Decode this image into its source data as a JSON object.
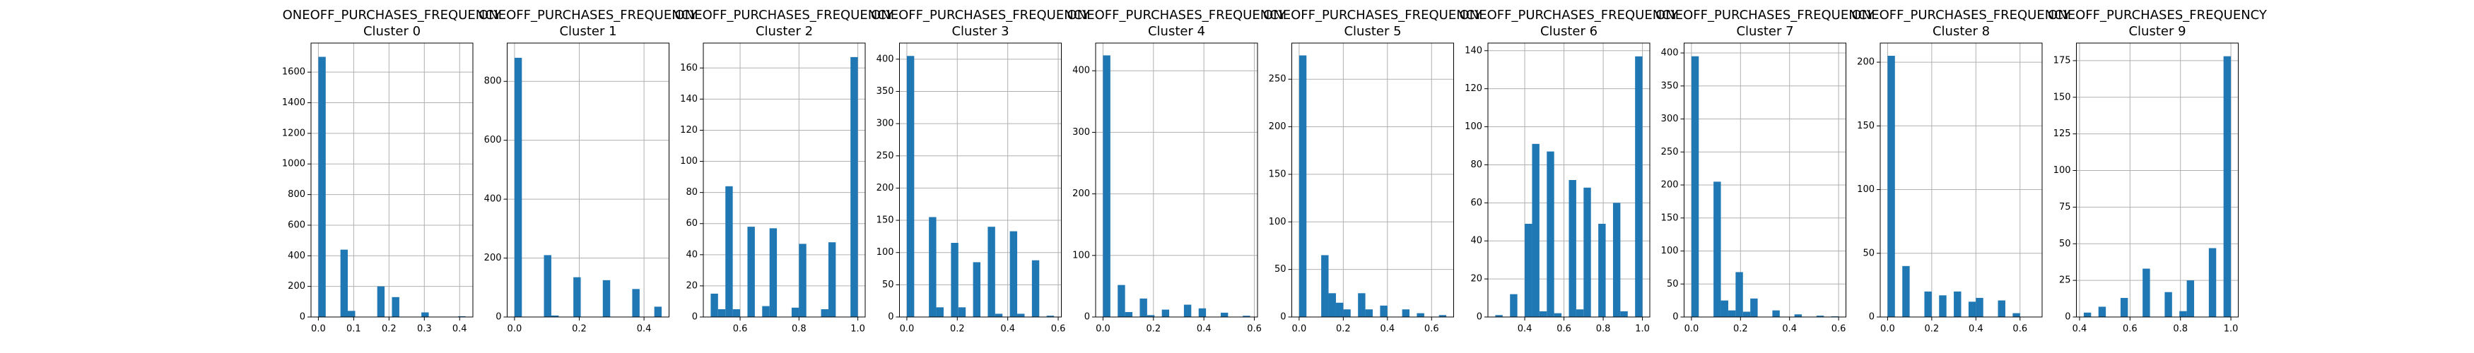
{
  "chart_data": [
    {
      "type": "histogram",
      "title": "ONEOFF_PURCHASES_FREQUENCY",
      "subtitle": "Cluster 0",
      "color": "#1f77b4",
      "grid": true,
      "bins": [
        0,
        0.0208,
        0.0417,
        0.0625,
        0.0833,
        0.1042,
        0.125,
        0.1458,
        0.1667,
        0.1875,
        0.2083,
        0.2292,
        0.25,
        0.2708,
        0.2917,
        0.3125,
        0.3333,
        0.3542,
        0.375,
        0.3958,
        0.4167
      ],
      "counts": [
        1700,
        0,
        0,
        440,
        40,
        0,
        0,
        0,
        200,
        0,
        130,
        0,
        0,
        0,
        30,
        0,
        0,
        0,
        0,
        5
      ],
      "xlim": [
        -0.0208,
        0.4375
      ],
      "xticks": [
        {
          "value": 0,
          "label": "0.0"
        },
        0.1,
        0.2,
        0.3,
        0.4
      ],
      "ylim": [
        0,
        1790
      ],
      "yticks": [
        0,
        200,
        400,
        600,
        800,
        1000,
        1200,
        1400,
        1600
      ]
    },
    {
      "type": "histogram",
      "title": "ONEOFF_PURCHASES_FREQUENCY",
      "subtitle": "Cluster 1",
      "color": "#1f77b4",
      "grid": true,
      "bins": [
        0,
        0.0227,
        0.0455,
        0.0682,
        0.0909,
        0.1136,
        0.1364,
        0.1591,
        0.1818,
        0.2045,
        0.2273,
        0.25,
        0.2727,
        0.2955,
        0.3182,
        0.3409,
        0.3636,
        0.3864,
        0.4091,
        0.4318,
        0.4545
      ],
      "counts": [
        880,
        0,
        0,
        0,
        210,
        5,
        0,
        0,
        135,
        0,
        0,
        0,
        125,
        0,
        0,
        0,
        95,
        0,
        0,
        35
      ],
      "xlim": [
        -0.0227,
        0.4773
      ],
      "xticks": [
        {
          "value": 0,
          "label": "0.0"
        },
        0.2,
        0.4
      ],
      "ylim": [
        0,
        930
      ],
      "yticks": [
        0,
        200,
        400,
        600,
        800
      ]
    },
    {
      "type": "histogram",
      "title": "ONEOFF_PURCHASES_FREQUENCY",
      "subtitle": "Cluster 2",
      "color": "#1f77b4",
      "grid": true,
      "bins": [
        0.5,
        0.525,
        0.55,
        0.575,
        0.6,
        0.625,
        0.65,
        0.675,
        0.7,
        0.725,
        0.75,
        0.775,
        0.8,
        0.825,
        0.85,
        0.875,
        0.9,
        0.925,
        0.95,
        0.975,
        1
      ],
      "counts": [
        15,
        5,
        84,
        5,
        0,
        58,
        0,
        7,
        57,
        0,
        0,
        6,
        47,
        0,
        0,
        5,
        48,
        0,
        0,
        167
      ],
      "xlim": [
        0.475,
        1.025
      ],
      "xticks": [
        0.6,
        0.8,
        {
          "value": 1,
          "label": "1.0"
        }
      ],
      "ylim": [
        0,
        176
      ],
      "yticks": [
        0,
        20,
        40,
        60,
        80,
        100,
        120,
        140,
        160
      ]
    },
    {
      "type": "histogram",
      "title": "ONEOFF_PURCHASES_FREQUENCY",
      "subtitle": "Cluster 3",
      "color": "#1f77b4",
      "grid": true,
      "bins": [
        0,
        0.0292,
        0.0583,
        0.0875,
        0.1167,
        0.1458,
        0.175,
        0.2042,
        0.2333,
        0.2625,
        0.2917,
        0.3208,
        0.35,
        0.3792,
        0.4083,
        0.4375,
        0.4667,
        0.4958,
        0.525,
        0.5542,
        0.5833
      ],
      "counts": [
        405,
        0,
        0,
        155,
        15,
        0,
        115,
        15,
        0,
        85,
        0,
        140,
        5,
        0,
        133,
        5,
        0,
        88,
        0,
        2
      ],
      "xlim": [
        -0.0292,
        0.6125
      ],
      "xticks": [
        {
          "value": 0,
          "label": "0.0"
        },
        0.2,
        0.4,
        0.6
      ],
      "ylim": [
        0,
        425
      ],
      "yticks": [
        0,
        50,
        100,
        150,
        200,
        250,
        300,
        350,
        400
      ]
    },
    {
      "type": "histogram",
      "title": "ONEOFF_PURCHASES_FREQUENCY",
      "subtitle": "Cluster 4",
      "color": "#1f77b4",
      "grid": true,
      "bins": [
        0,
        0.0292,
        0.0583,
        0.0875,
        0.1167,
        0.1458,
        0.175,
        0.2042,
        0.2333,
        0.2625,
        0.2917,
        0.3208,
        0.35,
        0.3792,
        0.4083,
        0.4375,
        0.4667,
        0.4958,
        0.525,
        0.5542,
        0.5833
      ],
      "counts": [
        425,
        0,
        52,
        8,
        0,
        30,
        3,
        0,
        12,
        0,
        0,
        20,
        0,
        14,
        0,
        0,
        7,
        0,
        0,
        2
      ],
      "xlim": [
        -0.0292,
        0.6125
      ],
      "xticks": [
        {
          "value": 0,
          "label": "0.0"
        },
        0.2,
        0.4,
        0.6
      ],
      "ylim": [
        0,
        445
      ],
      "yticks": [
        0,
        100,
        200,
        300,
        400
      ]
    },
    {
      "type": "histogram",
      "title": "ONEOFF_PURCHASES_FREQUENCY",
      "subtitle": "Cluster 5",
      "color": "#1f77b4",
      "grid": true,
      "bins": [
        0,
        0.0333,
        0.0667,
        0.1,
        0.1333,
        0.1667,
        0.2,
        0.2333,
        0.2667,
        0.3,
        0.3333,
        0.3667,
        0.4,
        0.4333,
        0.4667,
        0.5,
        0.5333,
        0.5667,
        0.6,
        0.6333,
        0.6667
      ],
      "counts": [
        275,
        0,
        0,
        65,
        25,
        15,
        8,
        0,
        25,
        8,
        0,
        12,
        0,
        0,
        8,
        0,
        4,
        0,
        0,
        2
      ],
      "xlim": [
        -0.0333,
        0.7
      ],
      "xticks": [
        {
          "value": 0,
          "label": "0.0"
        },
        0.2,
        0.4,
        0.6
      ],
      "ylim": [
        0,
        288
      ],
      "yticks": [
        0,
        50,
        100,
        150,
        200,
        250
      ]
    },
    {
      "type": "histogram",
      "title": "ONEOFF_PURCHASES_FREQUENCY",
      "subtitle": "Cluster 6",
      "color": "#1f77b4",
      "grid": true,
      "bins": [
        0.25,
        0.2875,
        0.325,
        0.3625,
        0.4,
        0.4375,
        0.475,
        0.5125,
        0.55,
        0.5875,
        0.625,
        0.6625,
        0.7,
        0.7375,
        0.775,
        0.8125,
        0.85,
        0.8875,
        0.925,
        0.9625,
        1
      ],
      "counts": [
        1,
        0,
        12,
        0,
        49,
        91,
        3,
        87,
        2,
        0,
        72,
        4,
        68,
        0,
        49,
        0,
        60,
        3,
        0,
        137
      ],
      "xlim": [
        0.2125,
        1.0375
      ],
      "xticks": [
        0.4,
        0.6,
        0.8,
        {
          "value": 1,
          "label": "1.0"
        }
      ],
      "ylim": [
        0,
        144
      ],
      "yticks": [
        0,
        20,
        40,
        60,
        80,
        100,
        120,
        140
      ]
    },
    {
      "type": "histogram",
      "title": "ONEOFF_PURCHASES_FREQUENCY",
      "subtitle": "Cluster 7",
      "color": "#1f77b4",
      "grid": true,
      "bins": [
        0,
        0.03,
        0.06,
        0.09,
        0.12,
        0.15,
        0.18,
        0.21,
        0.24,
        0.27,
        0.3,
        0.33,
        0.36,
        0.39,
        0.42,
        0.45,
        0.48,
        0.51,
        0.54,
        0.57,
        0.6
      ],
      "counts": [
        395,
        0,
        0,
        205,
        25,
        10,
        68,
        8,
        28,
        0,
        0,
        10,
        0,
        0,
        4,
        0,
        0,
        2,
        0,
        1
      ],
      "xlim": [
        -0.03,
        0.63
      ],
      "xticks": [
        {
          "value": 0,
          "label": "0.0"
        },
        0.2,
        0.4,
        0.6
      ],
      "ylim": [
        0,
        415
      ],
      "yticks": [
        0,
        50,
        100,
        150,
        200,
        250,
        300,
        350,
        400
      ]
    },
    {
      "type": "histogram",
      "title": "ONEOFF_PURCHASES_FREQUENCY",
      "subtitle": "Cluster 8",
      "color": "#1f77b4",
      "grid": true,
      "bins": [
        0,
        0.0333,
        0.0667,
        0.1,
        0.1333,
        0.1667,
        0.2,
        0.2333,
        0.2667,
        0.3,
        0.3333,
        0.3667,
        0.4,
        0.4333,
        0.4667,
        0.5,
        0.5333,
        0.5667,
        0.6,
        0.6333,
        0.6667
      ],
      "counts": [
        205,
        0,
        40,
        0,
        0,
        20,
        0,
        17,
        0,
        20,
        0,
        12,
        15,
        0,
        0,
        13,
        0,
        3,
        0,
        0
      ],
      "xlim": [
        -0.0333,
        0.7
      ],
      "xticks": [
        {
          "value": 0,
          "label": "0.0"
        },
        0.2,
        0.4,
        0.6
      ],
      "ylim": [
        0,
        215
      ],
      "yticks": [
        0,
        50,
        100,
        150,
        200
      ]
    },
    {
      "type": "histogram",
      "title": "ONEOFF_PURCHASES_FREQUENCY",
      "subtitle": "Cluster 9",
      "color": "#1f77b4",
      "grid": true,
      "bins": [
        0.4167,
        0.4458,
        0.475,
        0.5042,
        0.5333,
        0.5625,
        0.5917,
        0.6208,
        0.65,
        0.6792,
        0.7083,
        0.7375,
        0.7667,
        0.7958,
        0.825,
        0.8542,
        0.8833,
        0.9125,
        0.9417,
        0.9708,
        1
      ],
      "counts": [
        3,
        0,
        7,
        0,
        0,
        13,
        0,
        0,
        33,
        0,
        0,
        17,
        0,
        4,
        25,
        0,
        0,
        47,
        0,
        178
      ],
      "xlim": [
        0.3875,
        1.0292
      ],
      "xticks": [
        0.4,
        0.6,
        0.8,
        {
          "value": 1,
          "label": "1.0"
        }
      ],
      "ylim": [
        0,
        187
      ],
      "yticks": [
        0,
        25,
        50,
        75,
        100,
        125,
        150,
        175
      ]
    }
  ]
}
